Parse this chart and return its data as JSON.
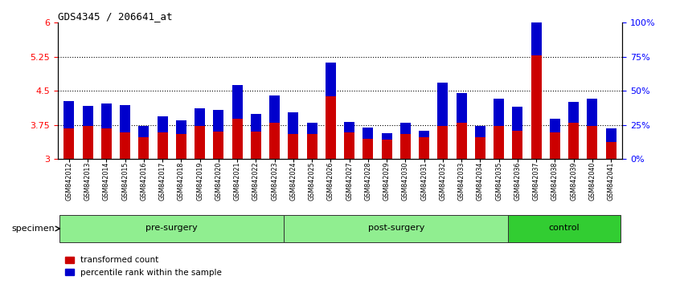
{
  "title": "GDS4345 / 206641_at",
  "samples": [
    "GSM842012",
    "GSM842013",
    "GSM842014",
    "GSM842015",
    "GSM842016",
    "GSM842017",
    "GSM842018",
    "GSM842019",
    "GSM842020",
    "GSM842021",
    "GSM842022",
    "GSM842023",
    "GSM842024",
    "GSM842025",
    "GSM842026",
    "GSM842027",
    "GSM842028",
    "GSM842029",
    "GSM842030",
    "GSM842031",
    "GSM842032",
    "GSM842033",
    "GSM842034",
    "GSM842035",
    "GSM842036",
    "GSM842037",
    "GSM842038",
    "GSM842039",
    "GSM842040",
    "GSM842041"
  ],
  "red_values": [
    3.68,
    3.72,
    3.68,
    3.58,
    3.48,
    3.58,
    3.55,
    3.72,
    3.6,
    3.88,
    3.6,
    3.8,
    3.55,
    3.55,
    4.38,
    3.58,
    3.45,
    3.42,
    3.55,
    3.48,
    3.72,
    3.8,
    3.48,
    3.72,
    3.62,
    5.28,
    3.58,
    3.8,
    3.72,
    3.38
  ],
  "blue_pct": [
    20,
    15,
    18,
    20,
    8,
    12,
    10,
    13,
    16,
    25,
    13,
    20,
    16,
    8,
    25,
    8,
    8,
    5,
    8,
    5,
    32,
    22,
    8,
    20,
    18,
    45,
    10,
    15,
    20,
    10
  ],
  "groups": [
    {
      "label": "pre-surgery",
      "start": 0,
      "end": 11,
      "color": "#90EE90"
    },
    {
      "label": "post-surgery",
      "start": 12,
      "end": 23,
      "color": "#90EE90"
    },
    {
      "label": "control",
      "start": 24,
      "end": 29,
      "color": "#32CD32"
    }
  ],
  "ylim_left": [
    3.0,
    6.0
  ],
  "ylim_right": [
    0,
    100
  ],
  "yticks_left": [
    3.0,
    3.75,
    4.5,
    5.25,
    6.0
  ],
  "ytick_labels_left": [
    "3",
    "3.75",
    "4.5",
    "5.25",
    "6"
  ],
  "yticks_right": [
    0,
    25,
    50,
    75,
    100
  ],
  "ytick_labels_right": [
    "0%",
    "25%",
    "50%",
    "75%",
    "100%"
  ],
  "hlines": [
    3.75,
    4.5,
    5.25
  ],
  "bar_color_red": "#cc0000",
  "bar_color_blue": "#0000cc",
  "bar_width": 0.55,
  "xtick_bg": "#c8c8c8",
  "plot_bg": "#ffffff",
  "specimen_label": "specimen",
  "legend_labels": [
    "transformed count",
    "percentile rank within the sample"
  ]
}
